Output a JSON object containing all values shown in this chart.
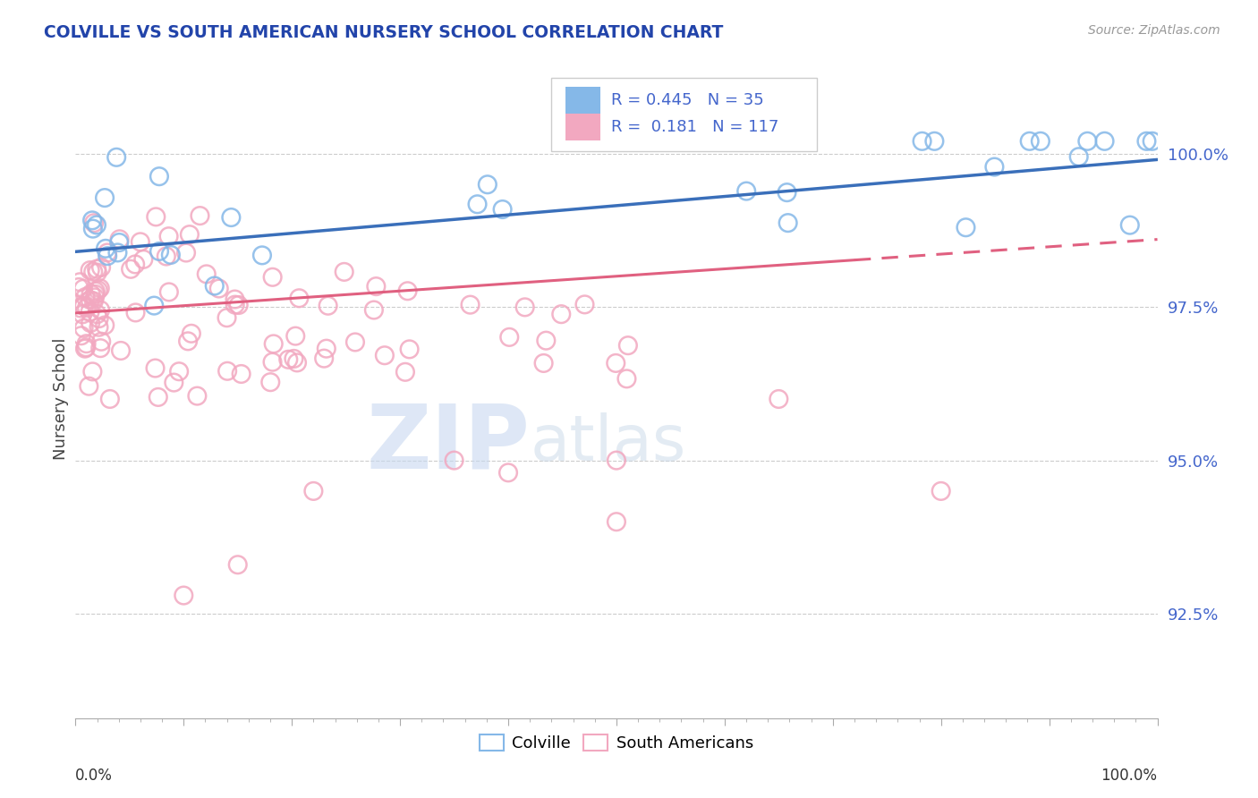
{
  "title": "COLVILLE VS SOUTH AMERICAN NURSERY SCHOOL CORRELATION CHART",
  "source": "Source: ZipAtlas.com",
  "ylabel": "Nursery School",
  "ytick_labels": [
    "92.5%",
    "95.0%",
    "97.5%",
    "100.0%"
  ],
  "ytick_values": [
    0.925,
    0.95,
    0.975,
    1.0
  ],
  "xlim": [
    0.0,
    1.0
  ],
  "ylim": [
    0.908,
    1.012
  ],
  "legend_colville": "Colville",
  "legend_sa": "South Americans",
  "colville_color": "#85b8e8",
  "sa_color": "#f2a8c0",
  "colville_line_color": "#3a6fba",
  "sa_line_color": "#e06080",
  "R_colville": 0.445,
  "N_colville": 35,
  "R_sa": 0.181,
  "N_sa": 117,
  "watermark_zip": "ZIP",
  "watermark_atlas": "atlas",
  "background_color": "#ffffff",
  "title_color": "#2244aa",
  "source_color": "#999999",
  "ytick_color": "#4466cc",
  "grid_color": "#cccccc"
}
